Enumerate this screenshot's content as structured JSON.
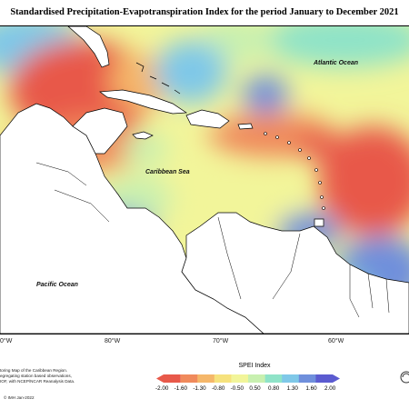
{
  "title": "Standardised Precipitation-Evapotranspiration Index for the period January to December 2021",
  "map": {
    "labels": {
      "atlantic": "Atlantic Ocean",
      "caribbean": "Caribbean Sea",
      "pacific": "Pacific Ocean"
    },
    "longitudes": [
      "0°W",
      "80°W",
      "70°W",
      "60°W"
    ],
    "land_color": "#ffffff",
    "coast_color": "#000000"
  },
  "footer": {
    "lines": [
      "toring Map of the Caribbean Region.",
      "egregating station based observations,",
      "IOF, with NCEP/NCAR Reanalysis Data."
    ],
    "copyright": "© IMH Jan-2022"
  },
  "legend": {
    "title": "SPEI Index",
    "ticks": [
      "-2.00",
      "-1.60",
      "-1.30",
      "-0.80",
      "-0.50",
      "0.50",
      "0.80",
      "1.30",
      "1.60",
      "2.00"
    ],
    "colors": [
      "#e8594a",
      "#f08a5c",
      "#f5b76a",
      "#f6e27d",
      "#f2f59a",
      "#c8f0b0",
      "#8fe3c8",
      "#7fc8e8",
      "#6f8fdc",
      "#5b5bd0"
    ]
  }
}
